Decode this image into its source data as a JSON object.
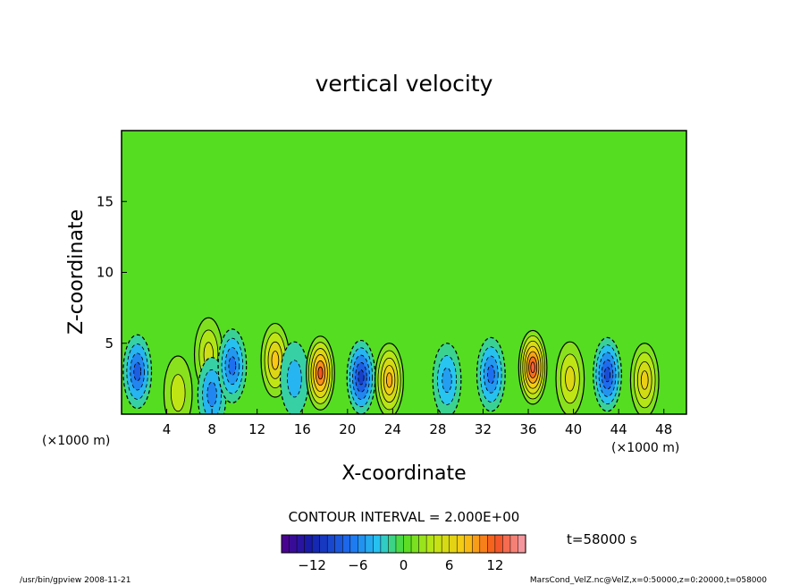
{
  "chart_data": {
    "type": "heatmap",
    "title": "vertical velocity",
    "xlabel": "X-coordinate",
    "ylabel": "Z-coordinate",
    "x_unit_left": "(×1000 m)",
    "x_unit_right": "(×1000 m)",
    "xlim": [
      0,
      50
    ],
    "ylim": [
      0,
      20
    ],
    "x_ticks": [
      4,
      8,
      12,
      16,
      20,
      24,
      28,
      32,
      36,
      40,
      44,
      48
    ],
    "y_ticks": [
      5,
      10,
      15
    ],
    "contour_interval_text": "CONTOUR INTERVAL = 2.000E+00",
    "time_label": "t=58000 s",
    "colorbar": {
      "min": -16,
      "max": 16,
      "ticks": [
        -12,
        -6,
        0,
        6,
        12
      ]
    },
    "cells": [
      {
        "x": 1.4,
        "z": 3.0,
        "w": -8
      },
      {
        "x": 5.0,
        "z": 1.5,
        "w": 4
      },
      {
        "x": 7.7,
        "z": 4.2,
        "w": 5
      },
      {
        "x": 8.0,
        "z": 1.4,
        "w": -6
      },
      {
        "x": 9.8,
        "z": 3.4,
        "w": -7
      },
      {
        "x": 13.6,
        "z": 3.8,
        "w": 8
      },
      {
        "x": 15.3,
        "z": 2.5,
        "w": -4
      },
      {
        "x": 17.6,
        "z": 2.9,
        "w": 12
      },
      {
        "x": 21.2,
        "z": 2.6,
        "w": -10
      },
      {
        "x": 23.7,
        "z": 2.4,
        "w": 9
      },
      {
        "x": 28.8,
        "z": 2.4,
        "w": -5
      },
      {
        "x": 32.7,
        "z": 2.8,
        "w": -7
      },
      {
        "x": 36.4,
        "z": 3.3,
        "w": 13
      },
      {
        "x": 39.7,
        "z": 2.5,
        "w": 6
      },
      {
        "x": 43.0,
        "z": 2.8,
        "w": -9
      },
      {
        "x": 46.3,
        "z": 2.4,
        "w": 7
      }
    ],
    "colors": {
      "background_field": "#55dd22",
      "positive_peak": "#f09020",
      "negative_peak": "#20b8ee"
    }
  },
  "footer": {
    "left": "/usr/bin/gpview   2008-11-21",
    "right": "MarsCond_VelZ.nc@VelZ,x=0:50000,z=0:20000,t=058000"
  }
}
